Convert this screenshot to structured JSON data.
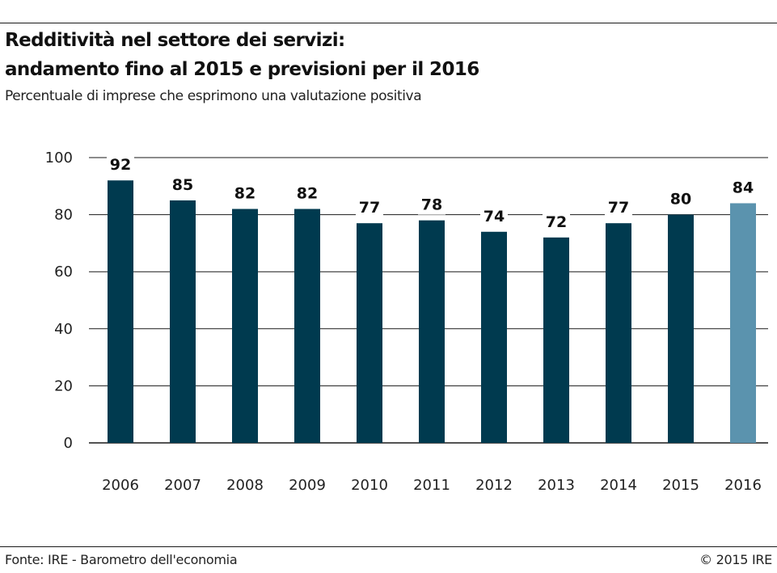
{
  "header": {
    "title_line1": "Redditività nel settore dei servizi:",
    "title_line2": "andamento fino al 2015 e previsioni per il 2016",
    "subtitle": "Percentuale di imprese che esprimono una valutazione positiva"
  },
  "footer": {
    "source": "Fonte: IRE - Barometro dell'economia",
    "copyright": "© 2015 IRE"
  },
  "chart_data": {
    "type": "bar",
    "title": "Redditività nel settore dei servizi: andamento fino al 2015 e previsioni per il 2016",
    "subtitle": "Percentuale di imprese che esprimono una valutazione positiva",
    "categories": [
      "2006",
      "2007",
      "2008",
      "2009",
      "2010",
      "2011",
      "2012",
      "2013",
      "2014",
      "2015",
      "2016"
    ],
    "values": [
      92,
      85,
      82,
      82,
      77,
      78,
      74,
      72,
      77,
      80,
      84
    ],
    "ylim": [
      0,
      100
    ],
    "yticks": [
      0,
      20,
      40,
      60,
      80,
      100
    ],
    "grid": true,
    "colors": {
      "actual": "#003a4f",
      "forecast": "#5b93ae",
      "grid": "#1a1a1a"
    },
    "highlight_categories": [
      "2016"
    ]
  }
}
